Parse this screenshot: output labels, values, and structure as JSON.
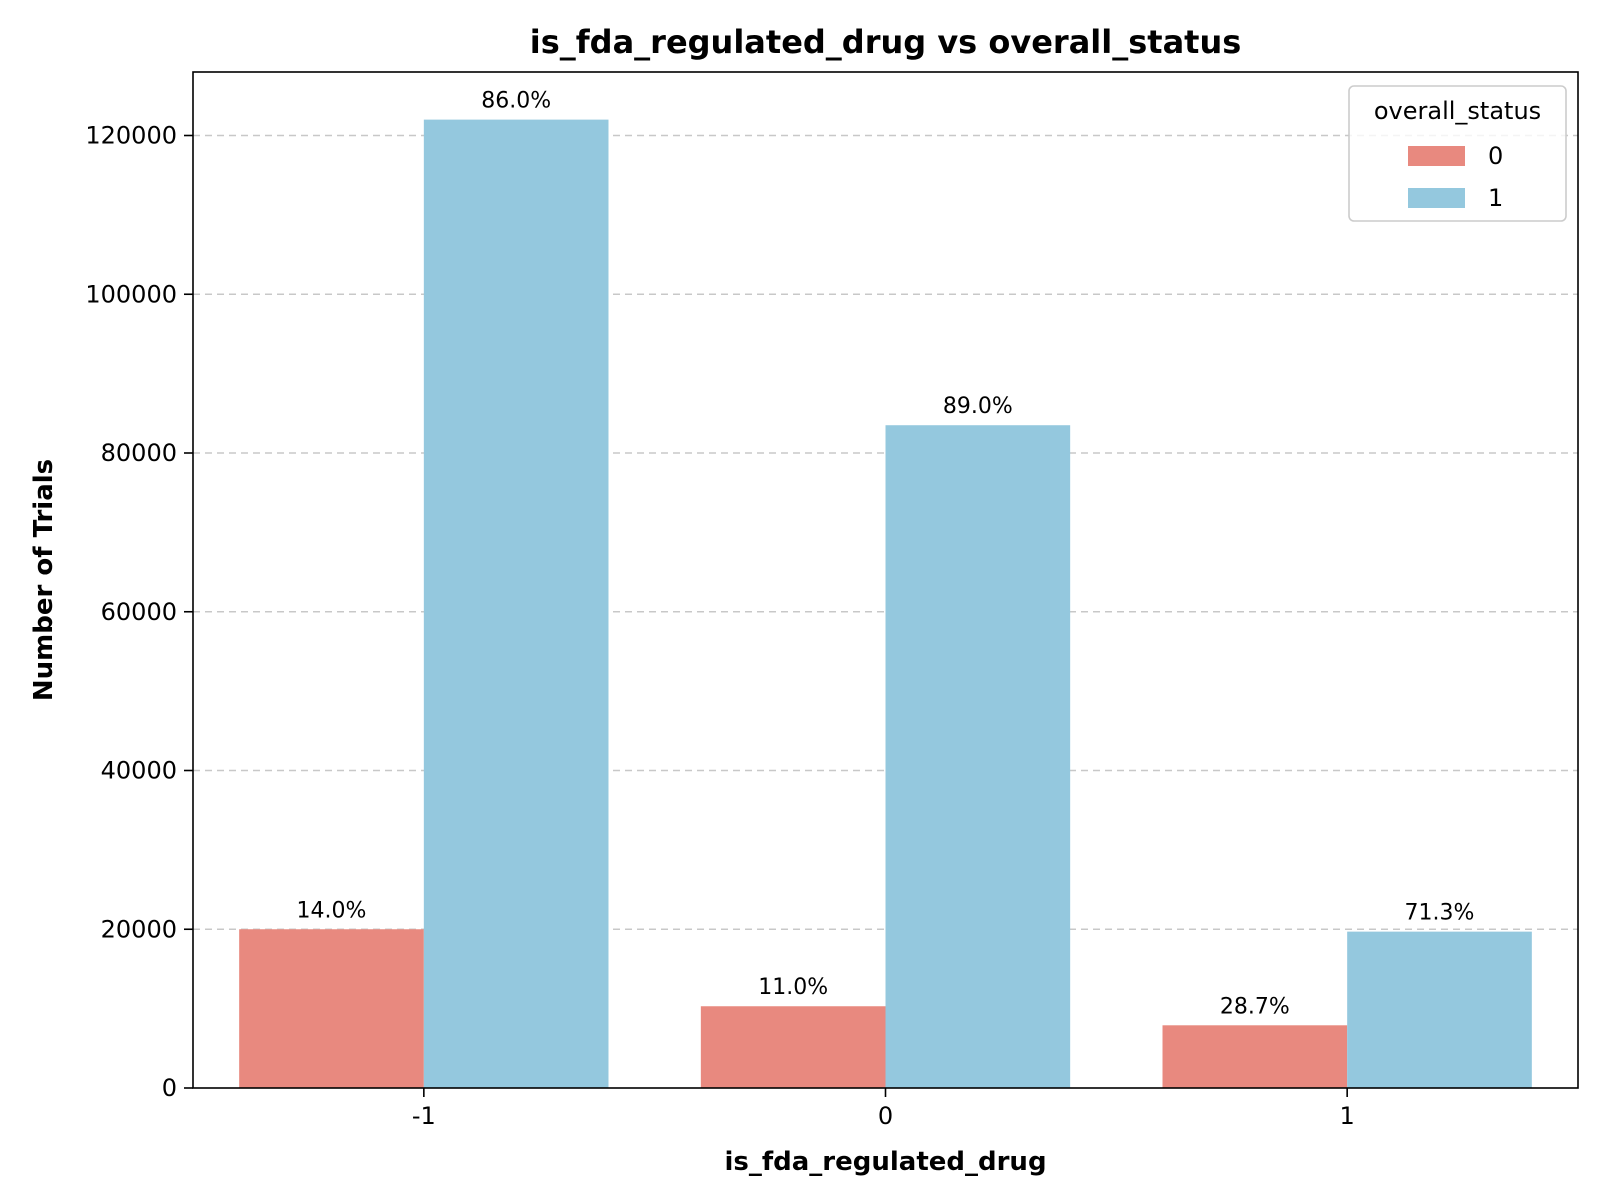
{
  "chart_data": {
    "type": "bar",
    "title": "is_fda_regulated_drug vs overall_status",
    "xlabel": "is_fda_regulated_drug",
    "ylabel": "Number of Trials",
    "categories": [
      "-1",
      "0",
      "1"
    ],
    "series": [
      {
        "name": "0",
        "color": "#e8897f",
        "values": [
          20000,
          10300,
          7900
        ],
        "labels": [
          "14.0%",
          "11.0%",
          "28.7%"
        ]
      },
      {
        "name": "1",
        "color": "#94c8de",
        "values": [
          122000,
          83500,
          19700
        ],
        "labels": [
          "86.0%",
          "89.0%",
          "71.3%"
        ]
      }
    ],
    "ylim": [
      0,
      128000
    ],
    "yticks": [
      "0",
      "20000",
      "40000",
      "60000",
      "80000",
      "100000",
      "120000"
    ],
    "legend": {
      "title": "overall_status",
      "placement": "top-right"
    },
    "grid": "y-dashed"
  }
}
